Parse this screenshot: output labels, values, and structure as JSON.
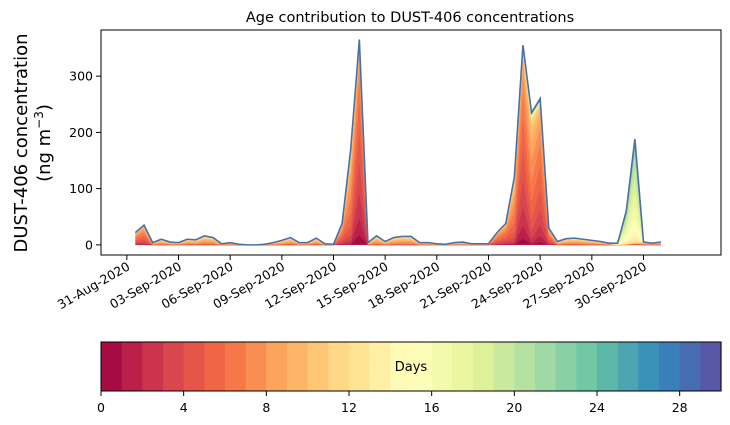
{
  "chart_data": {
    "type": "area",
    "title": "Age contribution to DUST-406 concentrations",
    "ylabel_line1": "DUST-406 concentration",
    "ylabel_line2": "(ng m",
    "ylabel_sup": "−3",
    "ylabel_close": ")",
    "xlabel": "",
    "ylim": [
      -18,
      382
    ],
    "yticks": [
      0,
      100,
      200,
      300
    ],
    "x_start": "2020-08-31",
    "xlim_days": [
      -1.5,
      34.5
    ],
    "xtick_labels": [
      "31-Aug-2020",
      "03-Sep-2020",
      "06-Sep-2020",
      "09-Sep-2020",
      "12-Sep-2020",
      "15-Sep-2020",
      "18-Sep-2020",
      "21-Sep-2020",
      "24-Sep-2020",
      "27-Sep-2020",
      "30-Sep-2020"
    ],
    "xtick_days": [
      0,
      3,
      6,
      9,
      12,
      15,
      18,
      21,
      24,
      27,
      30
    ],
    "x_days": [
      0.5,
      1.0,
      1.5,
      2.0,
      2.5,
      3.0,
      3.5,
      4.0,
      4.5,
      5.0,
      5.5,
      6.0,
      6.5,
      7.0,
      7.5,
      8.0,
      8.5,
      9.0,
      9.5,
      10.0,
      10.5,
      11.0,
      11.5,
      12.0,
      12.5,
      13.0,
      13.5,
      14.0,
      14.5,
      15.0,
      15.5,
      16.0,
      16.5,
      17.0,
      17.5,
      18.0,
      18.5,
      19.0,
      19.5,
      20.0,
      20.5,
      21.0,
      21.5,
      22.0,
      22.5,
      23.0,
      23.5,
      24.0,
      24.5,
      25.0,
      25.5,
      26.0,
      26.5,
      27.0,
      27.5,
      28.0,
      28.5,
      29.0,
      29.5,
      30.0,
      30.5,
      31.0
    ],
    "total": [
      22,
      35,
      4,
      10,
      5,
      4,
      10,
      9,
      16,
      13,
      2,
      4,
      1,
      0,
      0,
      1,
      4,
      8,
      13,
      4,
      4,
      12,
      2,
      1,
      38,
      170,
      365,
      4,
      16,
      6,
      13,
      15,
      15,
      4,
      4,
      2,
      1,
      4,
      5,
      2,
      2,
      2,
      22,
      38,
      120,
      355,
      235,
      260,
      30,
      6,
      11,
      12,
      10,
      8,
      6,
      3,
      3,
      60,
      188,
      5,
      3,
      5
    ],
    "age_fractions": [
      {
        "day_end": 4,
        "dominant_color": "#c7304a"
      },
      {
        "day_end": 8,
        "dominant_color": "#f46d43"
      },
      {
        "day_end": 12,
        "dominant_color": "#fdae61"
      },
      {
        "day_end": 16,
        "dominant_color": "#fee08b"
      },
      {
        "day_end": 20,
        "dominant_color": "#e6f598"
      },
      {
        "day_end": 24,
        "dominant_color": "#66c2a5"
      },
      {
        "day_end": 28,
        "dominant_color": "#3288bd"
      },
      {
        "day_end": 30,
        "dominant_color": "#5e4fa2"
      }
    ],
    "colorbar": {
      "label": "Days",
      "min": 0,
      "max": 30,
      "ticks": [
        0,
        4,
        8,
        12,
        16,
        20,
        24,
        28
      ],
      "colormap": "Spectral",
      "bins": 30
    }
  }
}
